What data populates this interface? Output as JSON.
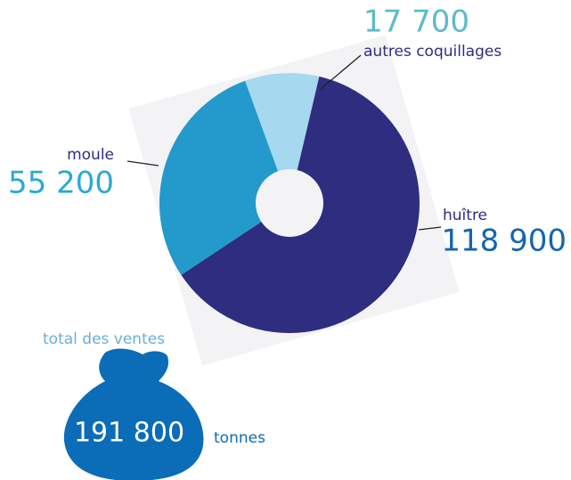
{
  "chart_data": {
    "type": "pie",
    "categories": [
      "autres coquillages",
      "huître",
      "moule"
    ],
    "values": [
      17700,
      118900,
      55200
    ],
    "value_labels": [
      "17 700",
      "118 900",
      "55 200"
    ],
    "colors": [
      "#a6d8ef",
      "#2e2d7f",
      "#2399cc"
    ],
    "total": {
      "label": "total  des ventes",
      "value": 191800,
      "value_label": "191 800",
      "unit": "tonnes"
    }
  }
}
